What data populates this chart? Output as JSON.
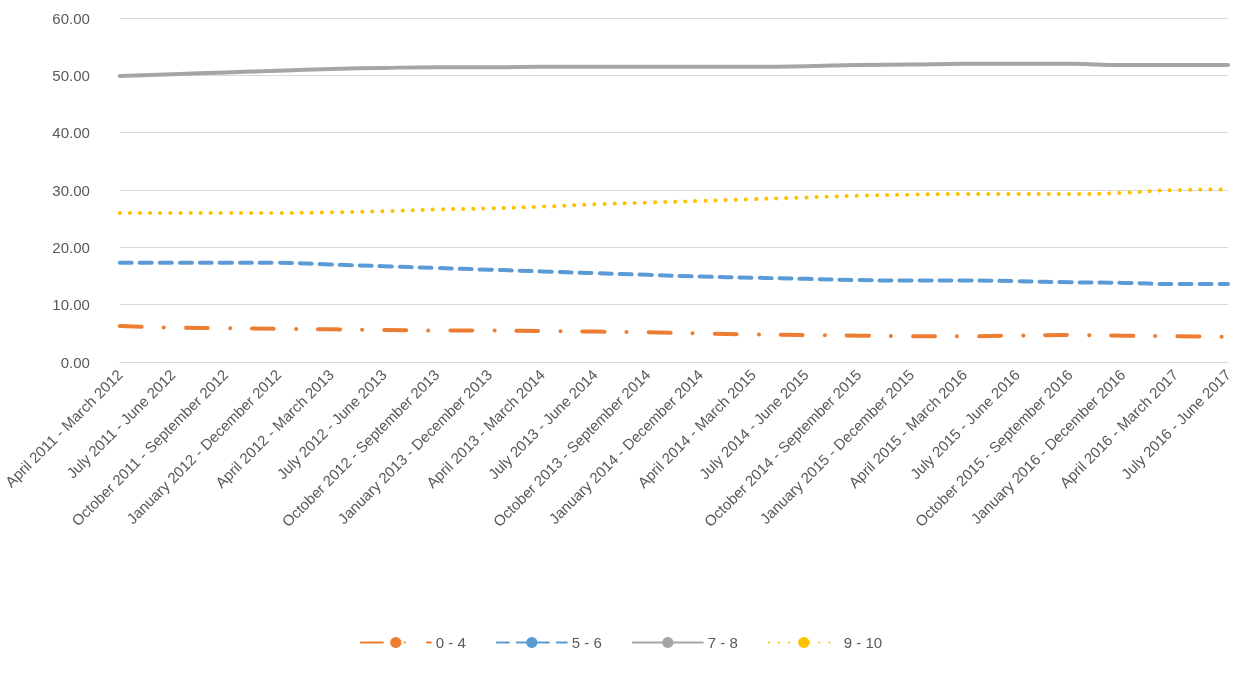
{
  "chart_data": {
    "type": "line",
    "categories": [
      "April 2011 - March 2012",
      "July 2011 - June 2012",
      "October 2011 - September 2012",
      "January 2012 - December 2012",
      "April 2012 - March 2013",
      "July 2012 - June 2013",
      "October 2012 - September 2013",
      "January 2013 - December 2013",
      "April 2013 - March 2014",
      "July 2013 - June 2014",
      "October 2013 - September 2014",
      "January 2014 - December 2014",
      "April 2014 - March 2015",
      "July 2014 - June 2015",
      "October 2014 - September 2015",
      "January 2015 - December 2015",
      "April 2015 - March 2016",
      "July 2015 - June 2016",
      "October 2015 - September 2016",
      "January 2016 - December 2016",
      "April 2016 - March 2017",
      "July 2016 - June 2017"
    ],
    "series": [
      {
        "name": "0 - 4",
        "color": "#ed7d31",
        "line_style": "dashdot",
        "values": [
          6.3,
          6.0,
          5.9,
          5.8,
          5.7,
          5.6,
          5.5,
          5.5,
          5.4,
          5.3,
          5.2,
          5.0,
          4.8,
          4.7,
          4.6,
          4.5,
          4.5,
          4.6,
          4.7,
          4.6,
          4.5,
          4.4
        ]
      },
      {
        "name": "5 - 6",
        "color": "#5b9bd5",
        "line_style": "dashed",
        "values": [
          17.3,
          17.3,
          17.3,
          17.3,
          17.0,
          16.7,
          16.4,
          16.1,
          15.8,
          15.5,
          15.2,
          14.9,
          14.7,
          14.5,
          14.3,
          14.2,
          14.2,
          14.1,
          13.9,
          13.8,
          13.6,
          13.6
        ]
      },
      {
        "name": "7 - 8",
        "color": "#a5a5a5",
        "line_style": "solid",
        "values": [
          49.9,
          50.2,
          50.5,
          50.8,
          51.1,
          51.3,
          51.4,
          51.4,
          51.5,
          51.5,
          51.5,
          51.5,
          51.5,
          51.6,
          51.8,
          51.9,
          52.0,
          52.0,
          52.0,
          51.8,
          51.8,
          51.8
        ]
      },
      {
        "name": "9 - 10",
        "color": "#ffc000",
        "line_style": "dotted",
        "values": [
          26.0,
          26.0,
          26.0,
          26.0,
          26.1,
          26.3,
          26.6,
          26.8,
          27.1,
          27.5,
          27.8,
          28.1,
          28.4,
          28.7,
          29.0,
          29.2,
          29.3,
          29.3,
          29.3,
          29.5,
          30.0,
          30.1
        ]
      }
    ],
    "ylim": [
      0,
      60
    ],
    "yticks": [
      {
        "value": 0,
        "label": "0.00"
      },
      {
        "value": 10,
        "label": "10.00"
      },
      {
        "value": 20,
        "label": "20.00"
      },
      {
        "value": 30,
        "label": "30.00"
      },
      {
        "value": 40,
        "label": "40.00"
      },
      {
        "value": 50,
        "label": "50.00"
      },
      {
        "value": 60,
        "label": "60.00"
      }
    ],
    "grid": "y",
    "legend": "bottom",
    "marker": "none"
  }
}
